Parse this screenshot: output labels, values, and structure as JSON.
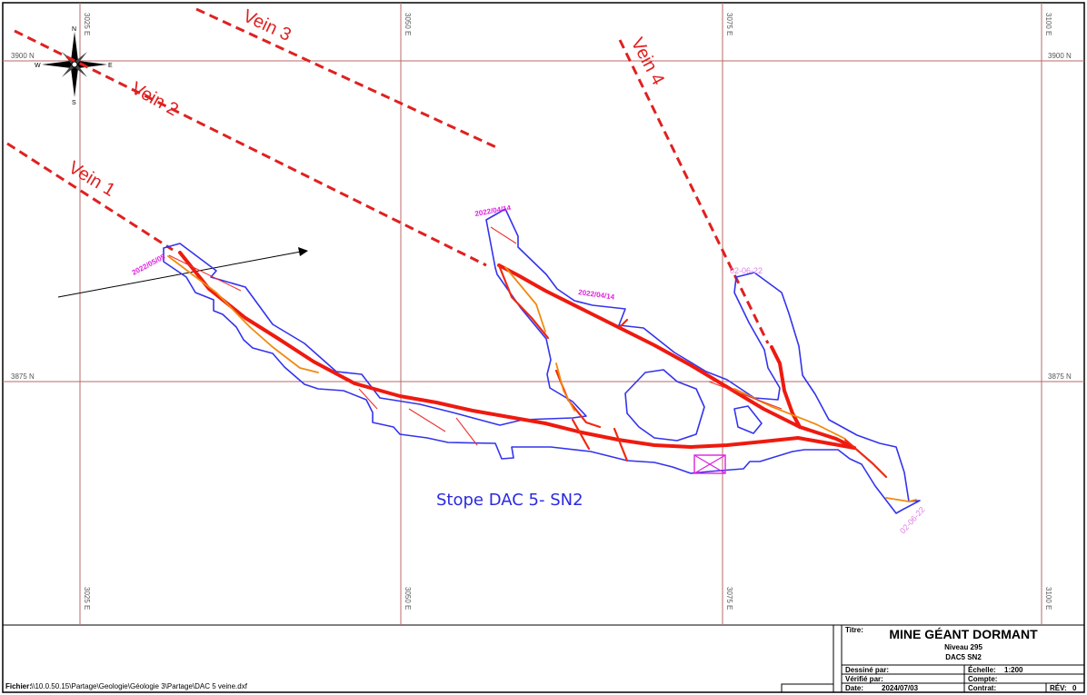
{
  "grid": {
    "easting_labels": [
      "3025 E",
      "3050 E",
      "3075 E",
      "3100 E"
    ],
    "northing_labels": [
      "3900 N",
      "3875 N"
    ]
  },
  "compass": {
    "n": "N",
    "s": "S",
    "e": "E",
    "w": "W"
  },
  "veins": [
    {
      "label": "Vein 1"
    },
    {
      "label": "Vein 2"
    },
    {
      "label": "Vein 3"
    },
    {
      "label": "Vein 4"
    }
  ],
  "survey_dates": [
    {
      "text": "2022/05/05",
      "color": "#e020e0"
    },
    {
      "text": "2022/04/14",
      "color": "#e020e0"
    },
    {
      "text": "2022/04/14",
      "color": "#e020e0"
    },
    {
      "text": "02-06-22",
      "color": "#e080e8"
    },
    {
      "text": "02-06-22",
      "color": "#e080e8"
    }
  ],
  "stope_label": "Stope DAC 5- SN2",
  "colors": {
    "grid": "#b96a6a",
    "vein": "#e02020",
    "stope_outline": "#3333ee",
    "drift": "#ee1a10",
    "drift_secondary": "#f08a10",
    "marker": "#e020e0"
  },
  "title_block": {
    "file_label": "Fichier:",
    "file_path": "\\\\10.0.50.15\\Partage\\Geologie\\Géologie 3\\Partage\\DAC 5 veine.dxf",
    "title_label": "Titre:",
    "title": "MINE GÉANT DORMANT",
    "level": "Niveau 295",
    "subtitle": "DAC5 SN2",
    "drawn_by_label": "Dessiné par:",
    "drawn_by": "",
    "scale_label": "Échelle:",
    "scale": "1:200",
    "checked_by_label": "Vérifié par:",
    "account_label": "Compte:",
    "date_label": "Date:",
    "date": "2024/07/03",
    "contract_label": "Contrat:",
    "rev_label": "RÉV:",
    "rev": "0"
  }
}
